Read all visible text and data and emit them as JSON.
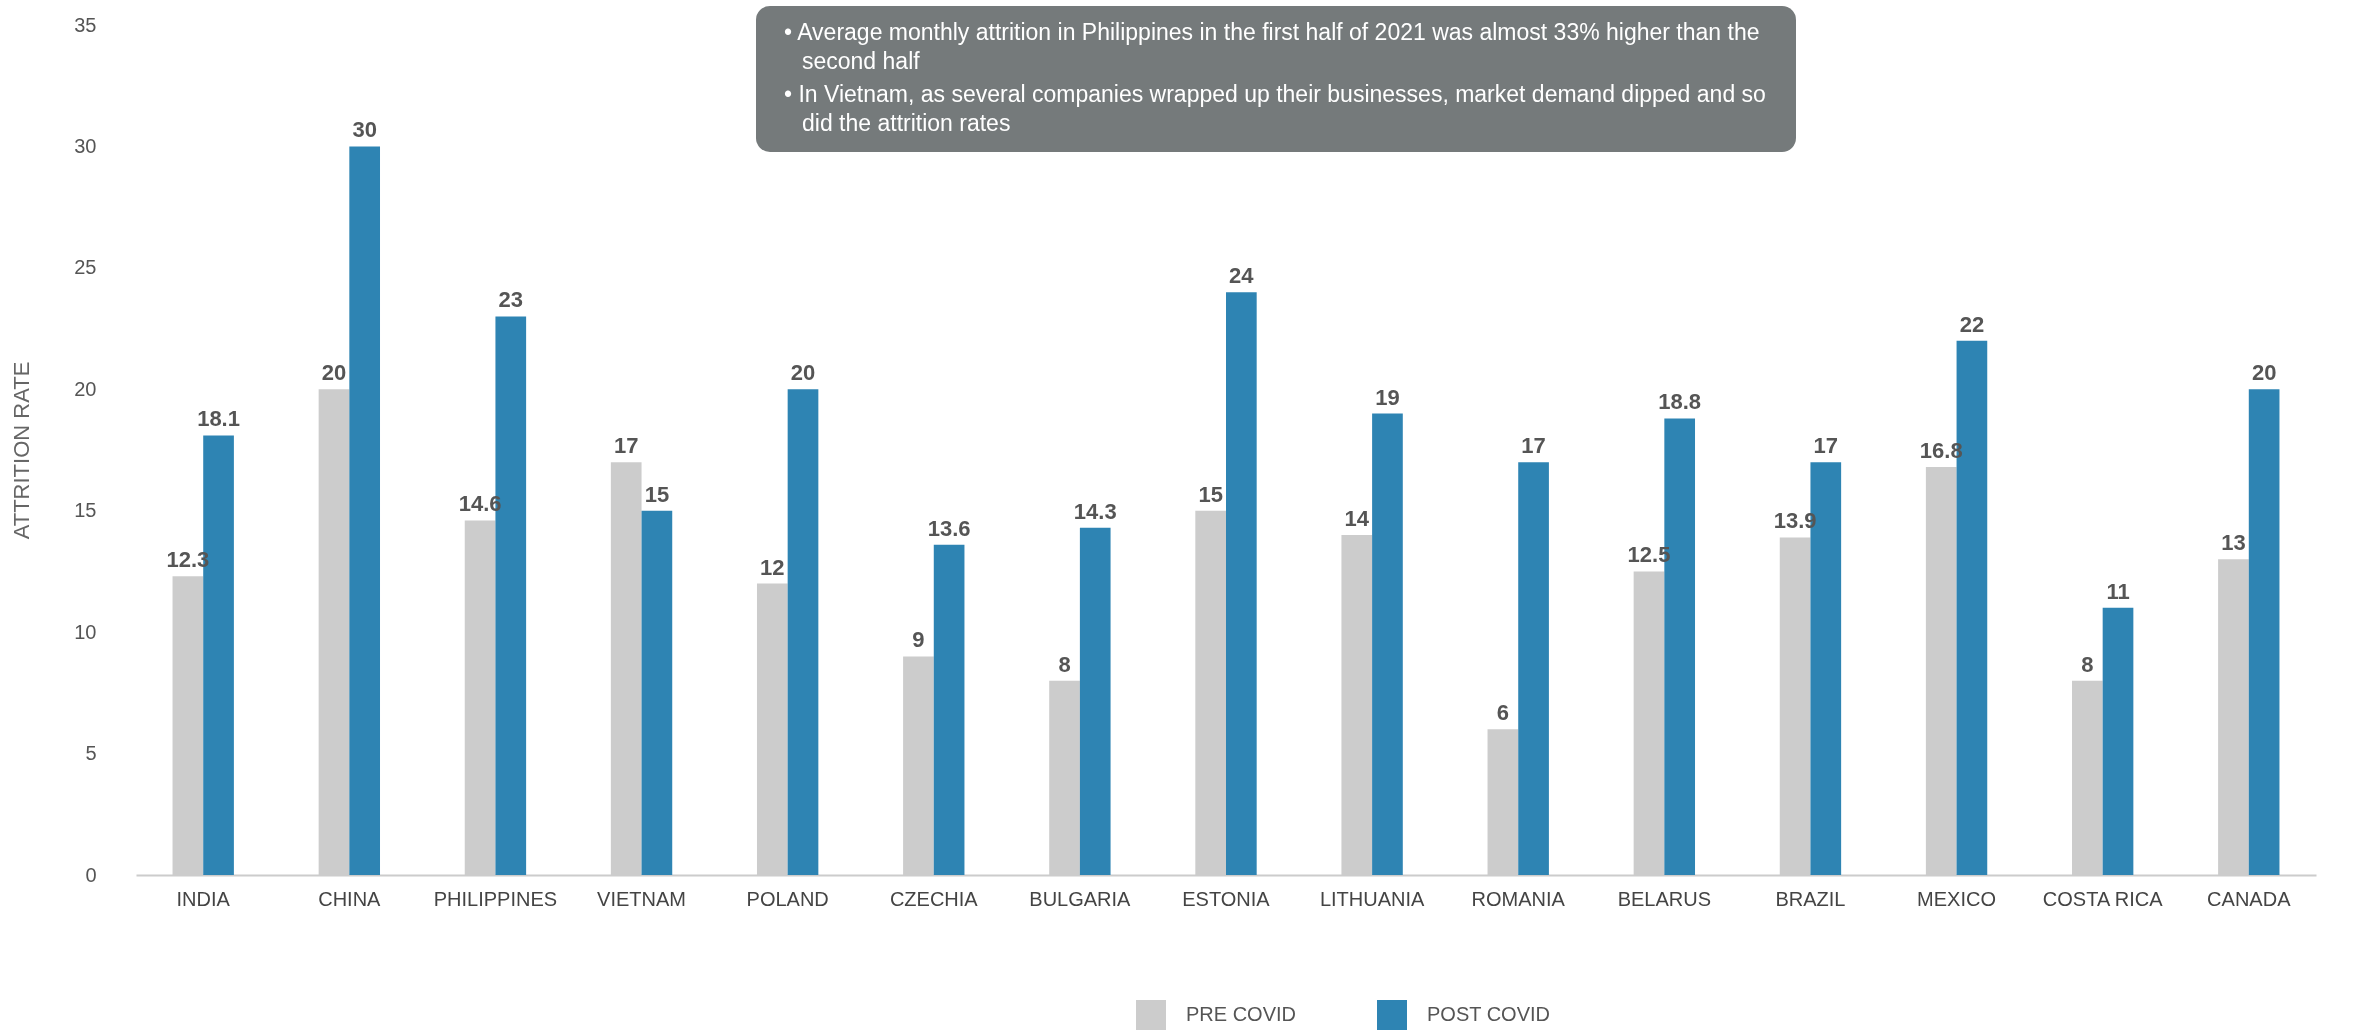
{
  "chart_data": {
    "type": "bar",
    "ylabel": "ATTRITION RATE",
    "categories": [
      "INDIA",
      "CHINA",
      "PHILIPPINES",
      "VIETNAM",
      "POLAND",
      "CZECHIA",
      "BULGARIA",
      "ESTONIA",
      "LITHUANIA",
      "ROMANIA",
      "BELARUS",
      "BRAZIL",
      "MEXICO",
      "COSTA RICA",
      "CANADA"
    ],
    "series": [
      {
        "name": "PRE COVID",
        "color": "#cccccc",
        "values": [
          12.3,
          20,
          14.6,
          17,
          12,
          9,
          8,
          15,
          14,
          6,
          12.5,
          13.9,
          16.8,
          8,
          13
        ]
      },
      {
        "name": "POST COVID",
        "color": "#2e84b3",
        "values": [
          18.1,
          30,
          23,
          15,
          20,
          13.6,
          14.3,
          24,
          19,
          17,
          18.8,
          17,
          22,
          11,
          20
        ]
      }
    ],
    "ylim": [
      0,
      35
    ],
    "yticks": [
      0,
      5,
      10,
      15,
      20,
      25,
      30,
      35
    ],
    "grid": false,
    "legend": "bottom",
    "data_labels": true,
    "annotations": [
      "• Average monthly attrition in Philippines in the first half of 2021 was almost 33% higher than the second half",
      "• In Vietnam, as several companies wrapped up their businesses, market demand dipped and so did the attrition rates"
    ]
  }
}
